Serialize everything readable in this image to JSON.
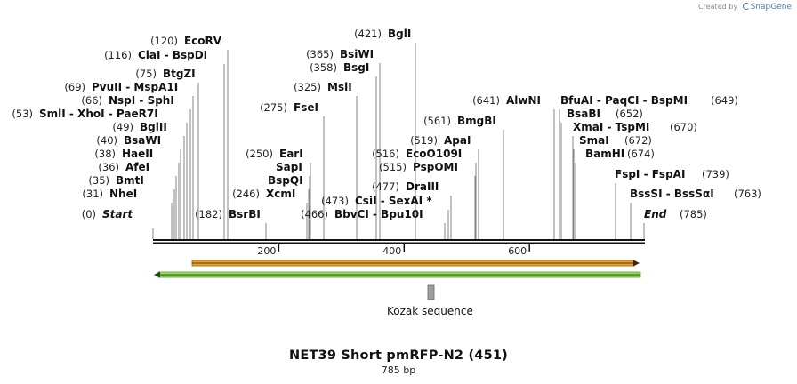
{
  "credit": {
    "prefix": "Created by",
    "brand": "SnapGene"
  },
  "map": {
    "title": "NET39 Short pmRFP-N2  (451)",
    "length_label": "785 bp",
    "length": 785,
    "ticks": [
      "200",
      "400",
      "600"
    ],
    "tick_values": [
      200,
      400,
      600
    ]
  },
  "features": [
    {
      "name": "Kozak sequence",
      "type": "box"
    },
    {
      "name": "forward-arrow",
      "type": "orange-arrow",
      "start": 63,
      "end": 785
    },
    {
      "name": "reverse-arrow",
      "type": "green-arrow",
      "start": 0,
      "end": 785
    }
  ],
  "sites": [
    {
      "pos": "(0)",
      "name": "Start",
      "italic": true
    },
    {
      "pos": "(31)",
      "name": "NheI"
    },
    {
      "pos": "(35)",
      "name": "BmtI"
    },
    {
      "pos": "(36)",
      "name": "AfeI"
    },
    {
      "pos": "(38)",
      "name": "HaeII"
    },
    {
      "pos": "(40)",
      "name": "BsaWI"
    },
    {
      "pos": "(49)",
      "name": "BglII"
    },
    {
      "pos": "(53)",
      "name": "SmlI  -  XhoI  -  PaeR7I"
    },
    {
      "pos": "(66)",
      "name": "NspI  -  SphI"
    },
    {
      "pos": "(69)",
      "name": "PvuII  -  MspA1I"
    },
    {
      "pos": "(75)",
      "name": "BtgZI"
    },
    {
      "pos": "(116)",
      "name": "ClaI  -  BspDI"
    },
    {
      "pos": "(120)",
      "name": "EcoRV"
    },
    {
      "pos": "(182)",
      "name": "BsrBI"
    },
    {
      "pos": "(246)",
      "name": "XcmI"
    },
    {
      "pos": "",
      "name": "BspQI"
    },
    {
      "pos": "",
      "name": "SapI"
    },
    {
      "pos": "(250)",
      "name": "EarI"
    },
    {
      "pos": "(275)",
      "name": "FseI"
    },
    {
      "pos": "(325)",
      "name": "MslI"
    },
    {
      "pos": "(358)",
      "name": "BsgI"
    },
    {
      "pos": "(365)",
      "name": "BsiWI"
    },
    {
      "pos": "(421)",
      "name": "BglI"
    },
    {
      "pos": "(466)",
      "name": "BbvCI  -  Bpu10I"
    },
    {
      "pos": "(473)",
      "name": "CsiI  -  SexAI *"
    },
    {
      "pos": "(477)",
      "name": "DraIII"
    },
    {
      "pos": "(515)",
      "name": "PspOMI"
    },
    {
      "pos": "(516)",
      "name": "EcoO109I"
    },
    {
      "pos": "(519)",
      "name": "ApaI"
    },
    {
      "pos": "(561)",
      "name": "BmgBI"
    },
    {
      "pos": "(641)",
      "name": "AlwNI"
    },
    {
      "pos": "(649)",
      "name": "BfuAI  -  PaqCI  -  BspMI"
    },
    {
      "pos": "(652)",
      "name": "BsaBI"
    },
    {
      "pos": "(670)",
      "name": "XmaI  -  TspMI"
    },
    {
      "pos": "(672)",
      "name": "SmaI"
    },
    {
      "pos": "(674)",
      "name": "BamHI"
    },
    {
      "pos": "(739)",
      "name": "FspI  -  FspAI"
    },
    {
      "pos": "(763)",
      "name": "BssSI  -  BssSαI"
    },
    {
      "pos": "(785)",
      "name": "End",
      "italic": true
    }
  ],
  "colors": {
    "orange_arrow": "#f0a030",
    "green_arrow": "#9be060",
    "kozak_box": "#a0a0a0",
    "leader": "#666666"
  }
}
